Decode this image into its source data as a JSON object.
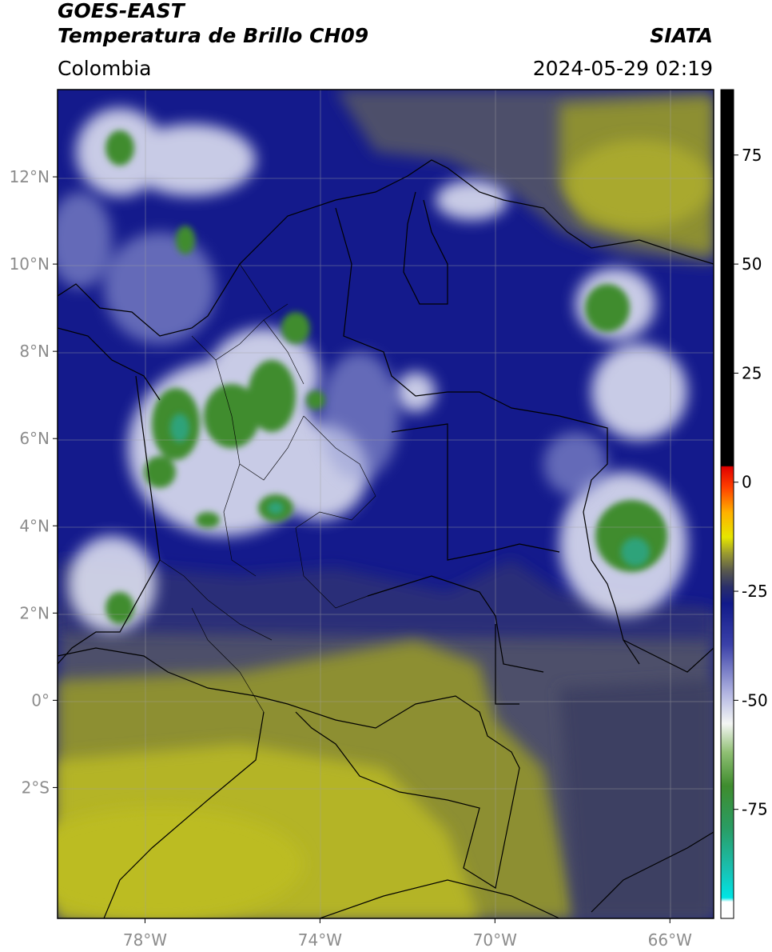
{
  "header": {
    "satellite": "GOES-EAST",
    "product": "Temperatura de Brillo CH09",
    "agency": "SIATA",
    "region": "Colombia",
    "timestamp": "2024-05-29 02:19"
  },
  "map": {
    "lon_range": [
      -80,
      -65
    ],
    "lat_range": [
      -5,
      14
    ],
    "lon_ticks": [
      {
        "value": -78,
        "label": "78°W"
      },
      {
        "value": -74,
        "label": "74°W"
      },
      {
        "value": -70,
        "label": "70°W"
      },
      {
        "value": -66,
        "label": "66°W"
      }
    ],
    "lat_ticks": [
      {
        "value": 12,
        "label": "12°N"
      },
      {
        "value": 10,
        "label": "10°N"
      },
      {
        "value": 8,
        "label": "8°N"
      },
      {
        "value": 6,
        "label": "6°N"
      },
      {
        "value": 4,
        "label": "4°N"
      },
      {
        "value": 2,
        "label": "2°N"
      },
      {
        "value": 0,
        "label": "0°"
      },
      {
        "value": -2,
        "label": "2°S"
      }
    ],
    "colors": {
      "cold_blue": "#141a8c",
      "mid_gray": "#4d4f6a",
      "olive": "#8d8f32",
      "yellow_olive": "#b4b428",
      "cloud_white": "#e8eaf6",
      "cloud_green": "#3f8c2e"
    }
  },
  "colorbar": {
    "range": [
      -100,
      90
    ],
    "ticks": [
      {
        "value": 75,
        "label": "75"
      },
      {
        "value": 50,
        "label": "50"
      },
      {
        "value": 25,
        "label": "25"
      },
      {
        "value": 0,
        "label": "0"
      },
      {
        "value": -25,
        "label": "-25"
      },
      {
        "value": -50,
        "label": "-50"
      },
      {
        "value": -75,
        "label": "-75"
      }
    ]
  }
}
